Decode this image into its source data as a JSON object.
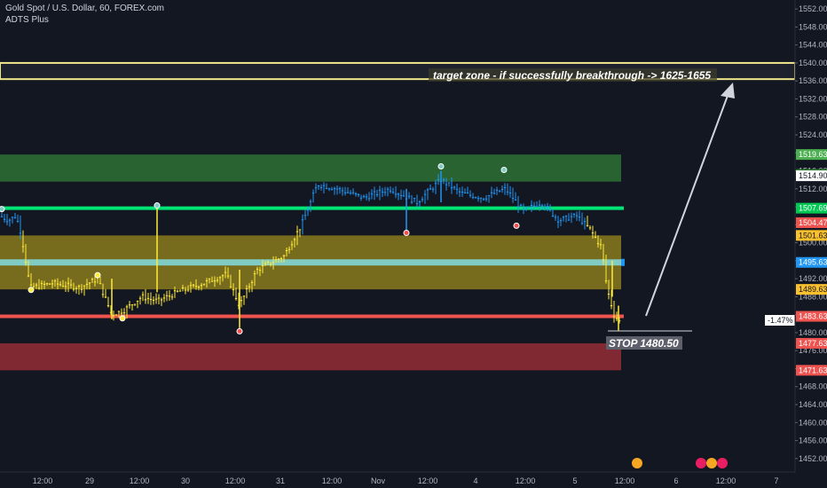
{
  "header": {
    "symbol_title": "Gold Spot / U.S. Dollar, 60, FOREX.com",
    "indicator": "ADTS Plus"
  },
  "annotations": {
    "target_text": "target zone - if successfully breakthrough -> 1625-1655",
    "stop_text": "STOP 1480.50",
    "change_badge": "-1.47%"
  },
  "colors": {
    "background": "#131722",
    "up_candle": "#2196f3",
    "down_candle": "#ffeb3b",
    "green_zone": "#2e6b34",
    "yellow_zone": "#8a7a1c",
    "red_zone": "#8e2b35",
    "green_line": "#00e676",
    "teal_line": "#80cbc4",
    "red_line": "#ef5350",
    "target_box_border": "#f0e68c",
    "arrow": "#d1d4dc"
  },
  "chart_data": {
    "type": "candlestick",
    "y_axis": {
      "min": 1449,
      "max": 1554,
      "ticks": [
        1452,
        1456,
        1460,
        1464,
        1468,
        1472,
        1476,
        1480,
        1484,
        1488,
        1492,
        1496,
        1500,
        1504,
        1508,
        1512,
        1516,
        1520,
        1524,
        1528,
        1532,
        1536,
        1540,
        1544,
        1548,
        1552
      ],
      "tick_labels": [
        "1452.00",
        "1456.00",
        "1460.00",
        "1464.00",
        "1468.00",
        "1472.00",
        "1476.00",
        "1480.00",
        "1484.00",
        "1488.00",
        "1492.00",
        "1496.00",
        "1500.00",
        "1504.00",
        "1508.00",
        "1512.00",
        "1516.00",
        "1520.00",
        "1524.00",
        "1528.00",
        "1532.00",
        "1536.00",
        "1540.00",
        "1544.00",
        "1548.00",
        "1552.00"
      ]
    },
    "x_axis": {
      "tick_labels": [
        "12:00",
        "29",
        "12:00",
        "30",
        "12:00",
        "31",
        "12:00",
        "Nov",
        "12:00",
        "4",
        "12:00",
        "5",
        "12:00",
        "6",
        "12:00",
        "7"
      ]
    },
    "zones": [
      {
        "name": "green-zone",
        "top": 1519.63,
        "bottom": 1513.6
      },
      {
        "name": "yellow-zone",
        "top": 1501.63,
        "bottom": 1489.63
      },
      {
        "name": "red-zone",
        "top": 1477.63,
        "bottom": 1471.63
      },
      {
        "name": "target-zone",
        "top": 1540.0,
        "bottom": 1536.4
      }
    ],
    "levels": [
      {
        "name": "green-level",
        "value": 1507.69
      },
      {
        "name": "teal-level",
        "value": 1495.63
      },
      {
        "name": "red-level",
        "value": 1483.63
      }
    ],
    "price_tags": [
      {
        "value": 1519.63,
        "label": "1519.63",
        "color": "#4caf50"
      },
      {
        "value": 1515.2,
        "label": "1515.20",
        "color": "#2e7d32"
      },
      {
        "value": 1514.9,
        "label": "1514.90",
        "color": "#ffffff"
      },
      {
        "value": 1507.69,
        "label": "1507.69",
        "color": "#00c853"
      },
      {
        "value": 1504.47,
        "label": "1504.47",
        "color": "#ef5350"
      },
      {
        "value": 1501.63,
        "label": "1501.63",
        "color": "#fbc02d"
      },
      {
        "value": 1495.63,
        "label": "1495.63",
        "color": "#2196f3"
      },
      {
        "value": 1489.63,
        "label": "1489.63",
        "color": "#fbc02d"
      },
      {
        "value": 1483.63,
        "label": "1483.63",
        "color": "#ef5350"
      },
      {
        "value": 1477.63,
        "label": "1477.63",
        "color": "#ef5350"
      },
      {
        "value": 1471.63,
        "label": "1471.63",
        "color": "#ef5350"
      }
    ],
    "target_range": "1625-1655",
    "stop_level": 1480.5,
    "change_percent": -1.47,
    "price_path": [
      {
        "t": 0,
        "v": 1506
      },
      {
        "t": 10,
        "v": 1505
      },
      {
        "t": 18,
        "v": 1506
      },
      {
        "t": 24,
        "v": 1502
      },
      {
        "t": 34,
        "v": 1490
      },
      {
        "t": 60,
        "v": 1491
      },
      {
        "t": 90,
        "v": 1490
      },
      {
        "t": 110,
        "v": 1492
      },
      {
        "t": 126,
        "v": 1484
      },
      {
        "t": 140,
        "v": 1485
      },
      {
        "t": 160,
        "v": 1488
      },
      {
        "t": 178,
        "v": 1487
      },
      {
        "t": 200,
        "v": 1489
      },
      {
        "t": 230,
        "v": 1491
      },
      {
        "t": 255,
        "v": 1493
      },
      {
        "t": 270,
        "v": 1486
      },
      {
        "t": 290,
        "v": 1494
      },
      {
        "t": 320,
        "v": 1497
      },
      {
        "t": 340,
        "v": 1504
      },
      {
        "t": 358,
        "v": 1513
      },
      {
        "t": 380,
        "v": 1512
      },
      {
        "t": 410,
        "v": 1510
      },
      {
        "t": 440,
        "v": 1512
      },
      {
        "t": 470,
        "v": 1509
      },
      {
        "t": 497,
        "v": 1514
      },
      {
        "t": 520,
        "v": 1511
      },
      {
        "t": 545,
        "v": 1510
      },
      {
        "t": 570,
        "v": 1512
      },
      {
        "t": 590,
        "v": 1507
      },
      {
        "t": 610,
        "v": 1509
      },
      {
        "t": 630,
        "v": 1505
      },
      {
        "t": 650,
        "v": 1506
      },
      {
        "t": 665,
        "v": 1503
      },
      {
        "t": 678,
        "v": 1499
      },
      {
        "t": 684,
        "v": 1490
      },
      {
        "t": 692,
        "v": 1484
      },
      {
        "t": 700,
        "v": 1482
      }
    ],
    "markers": [
      {
        "t": 2,
        "v": 1507.5,
        "color": "#80cbc4"
      },
      {
        "t": 35,
        "v": 1489.5,
        "color": "#ffeb3b"
      },
      {
        "t": 110,
        "v": 1492.8,
        "color": "#ffeb3b"
      },
      {
        "t": 138,
        "v": 1483.2,
        "color": "#ffeb3b"
      },
      {
        "t": 177,
        "v": 1508.3,
        "color": "#80cbc4"
      },
      {
        "t": 270,
        "v": 1480.3,
        "color": "#ef5350"
      },
      {
        "t": 458,
        "v": 1502.2,
        "color": "#ef5350"
      },
      {
        "t": 497,
        "v": 1517.0,
        "color": "#80cbc4"
      },
      {
        "t": 568,
        "v": 1516.2,
        "color": "#80cbc4"
      },
      {
        "t": 582,
        "v": 1503.8,
        "color": "#ef5350"
      }
    ]
  }
}
